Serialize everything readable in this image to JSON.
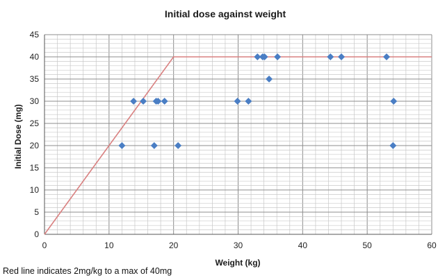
{
  "chart_data": {
    "type": "scatter",
    "title": "Initial dose against weight",
    "xlabel": "Weight (kg)",
    "ylabel": "Initial Dose (mg)",
    "xlim": [
      0,
      60
    ],
    "ylim": [
      0,
      45
    ],
    "x_ticks": [
      0,
      10,
      20,
      30,
      40,
      50,
      60
    ],
    "y_ticks": [
      0,
      5,
      10,
      15,
      20,
      25,
      30,
      35,
      40,
      45
    ],
    "grid": true,
    "legend": "none",
    "colors": {
      "points": "#4a7ec4",
      "line": "#d98080",
      "grid_major": "#8c8c8c",
      "grid_minor": "#c8c8c8"
    },
    "series": [
      {
        "type": "scatter",
        "points": [
          [
            12,
            20
          ],
          [
            13.8,
            30
          ],
          [
            15.3,
            30
          ],
          [
            17,
            20
          ],
          [
            17.3,
            30
          ],
          [
            17.6,
            30
          ],
          [
            18.6,
            30
          ],
          [
            20.7,
            20
          ],
          [
            29.9,
            30
          ],
          [
            31.6,
            30
          ],
          [
            33,
            40
          ],
          [
            33.8,
            40
          ],
          [
            34.1,
            40
          ],
          [
            34.8,
            35
          ],
          [
            36.1,
            40
          ],
          [
            44.3,
            40
          ],
          [
            46,
            40
          ],
          [
            53,
            40
          ],
          [
            54,
            20
          ],
          [
            54.1,
            30
          ]
        ]
      },
      {
        "type": "line",
        "points": [
          [
            0,
            0
          ],
          [
            20,
            40
          ],
          [
            60,
            40
          ]
        ]
      }
    ],
    "annotation": "Red line indicates 2mg/kg to a max of 40mg"
  }
}
